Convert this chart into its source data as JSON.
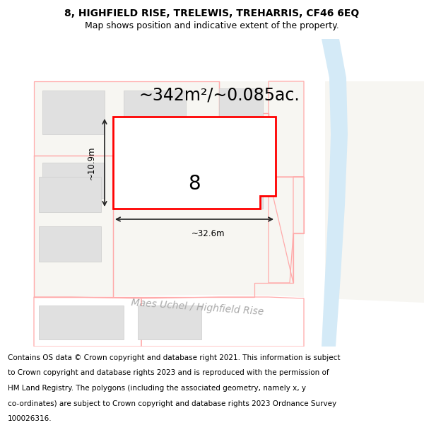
{
  "title_line1": "8, HIGHFIELD RISE, TRELEWIS, TREHARRIS, CF46 6EQ",
  "title_line2": "Map shows position and indicative extent of the property.",
  "area_text": "~342m²/~0.085ac.",
  "label_width": "~32.6m",
  "label_height": "~10.9m",
  "property_number": "8",
  "street_name": "Maes Uchel / Highfield Rise",
  "footer_lines": [
    "Contains OS data © Crown copyright and database right 2021. This information is subject",
    "to Crown copyright and database rights 2023 and is reproduced with the permission of",
    "HM Land Registry. The polygons (including the associated geometry, namely x, y",
    "co-ordinates) are subject to Crown copyright and database rights 2023 Ordnance Survey",
    "100026316."
  ],
  "map_bg": "#f7f6f2",
  "white": "#ffffff",
  "road_white": "#ffffff",
  "building_fill": "#e0e0e0",
  "building_edge": "#cccccc",
  "plot_red": "#ff0000",
  "plot_pink": "#ffaaaa",
  "water_color": "#d4eaf7",
  "dim_color": "#222222",
  "street_color": "#aaaaaa",
  "title_fontsize": 10,
  "subtitle_fontsize": 9,
  "area_fontsize": 17,
  "dim_fontsize": 8.5,
  "street_fontsize": 10,
  "num_fontsize": 20,
  "footer_fontsize": 7.5
}
